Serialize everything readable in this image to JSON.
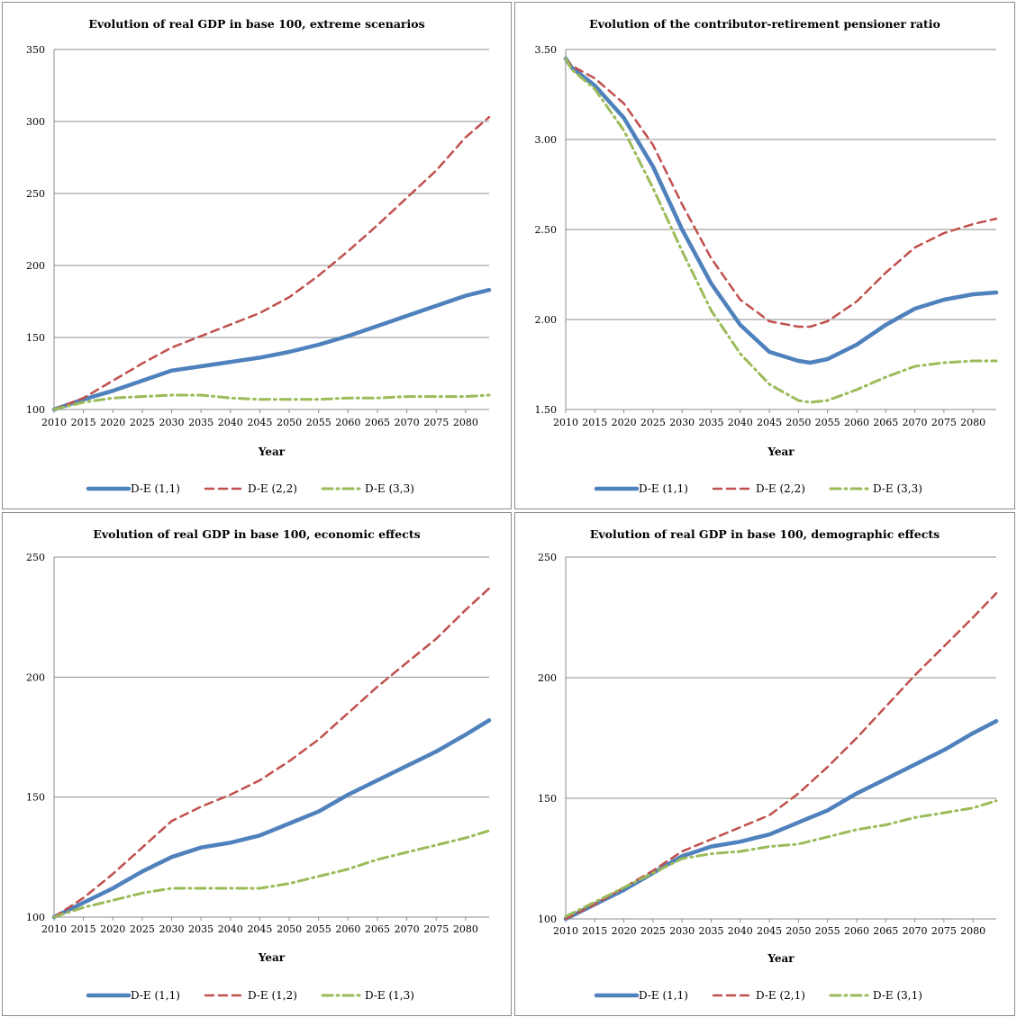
{
  "chart_data": [
    {
      "type": "line",
      "title": "Evolution of real GDP in base 100, extreme scenarios",
      "xlabel": "Year",
      "ylabel": "",
      "x": [
        2010,
        2015,
        2020,
        2025,
        2030,
        2035,
        2040,
        2045,
        2050,
        2055,
        2060,
        2065,
        2070,
        2075,
        2080,
        2084
      ],
      "x_ticks": [
        "2010",
        "2015",
        "2020",
        "2025",
        "2030",
        "2035",
        "2040",
        "2045",
        "2050",
        "2055",
        "2060",
        "2065",
        "2070",
        "2075",
        "2080"
      ],
      "y_ticks": [
        "100",
        "150",
        "200",
        "250",
        "300",
        "350"
      ],
      "ylim": [
        100,
        350
      ],
      "xlim": [
        2010,
        2084
      ],
      "grid": "horizontal",
      "legend": "bottom",
      "series": [
        {
          "name": "D-E (1,1)",
          "color": "#4f81bd",
          "style": "solid",
          "values": [
            100,
            107,
            113,
            120,
            127,
            130,
            133,
            136,
            140,
            145,
            151,
            158,
            165,
            172,
            179,
            183
          ]
        },
        {
          "name": "D-E (2,2)",
          "color": "#c0504d",
          "style": "dashed",
          "values": [
            100,
            108,
            120,
            132,
            143,
            151,
            159,
            167,
            178,
            193,
            210,
            228,
            247,
            266,
            289,
            303
          ]
        },
        {
          "name": "D-E (3,3)",
          "color": "#9bbb59",
          "style": "dashdot",
          "values": [
            100,
            105,
            108,
            109,
            110,
            110,
            108,
            107,
            107,
            107,
            108,
            108,
            109,
            109,
            109,
            110
          ]
        }
      ]
    },
    {
      "type": "line",
      "title": "Evolution of the contributor-retirement pensioner ratio",
      "xlabel": "Year",
      "ylabel": "",
      "x": [
        2010,
        2011,
        2015,
        2020,
        2025,
        2030,
        2035,
        2040,
        2045,
        2050,
        2052,
        2055,
        2060,
        2065,
        2070,
        2075,
        2080,
        2084
      ],
      "x_ticks": [
        "2010",
        "2015",
        "2020",
        "2025",
        "2030",
        "2035",
        "2040",
        "2045",
        "2050",
        "2055",
        "2060",
        "2065",
        "2070",
        "2075",
        "2080"
      ],
      "y_ticks": [
        "1.50",
        "2.00",
        "2.50",
        "3.00",
        "3.50"
      ],
      "ylim": [
        1.5,
        3.5
      ],
      "xlim": [
        2010,
        2084
      ],
      "grid": "horizontal",
      "legend": "bottom",
      "series": [
        {
          "name": "D-E (1,1)",
          "color": "#4f81bd",
          "style": "solid",
          "values": [
            3.45,
            3.4,
            3.3,
            3.12,
            2.85,
            2.5,
            2.2,
            1.97,
            1.82,
            1.77,
            1.76,
            1.78,
            1.86,
            1.97,
            2.06,
            2.11,
            2.14,
            2.15
          ]
        },
        {
          "name": "D-E (2,2)",
          "color": "#c0504d",
          "style": "dashed",
          "values": [
            3.45,
            3.41,
            3.34,
            3.2,
            2.97,
            2.64,
            2.34,
            2.11,
            1.99,
            1.96,
            1.96,
            1.99,
            2.1,
            2.26,
            2.4,
            2.48,
            2.53,
            2.56
          ]
        },
        {
          "name": "D-E (3,3)",
          "color": "#9bbb59",
          "style": "dashdot",
          "values": [
            3.45,
            3.39,
            3.28,
            3.05,
            2.73,
            2.38,
            2.05,
            1.81,
            1.64,
            1.55,
            1.54,
            1.55,
            1.61,
            1.68,
            1.74,
            1.76,
            1.77,
            1.77
          ]
        }
      ]
    },
    {
      "type": "line",
      "title": "Evolution of real GDP in base 100, economic effects",
      "xlabel": "Year",
      "ylabel": "",
      "x": [
        2010,
        2015,
        2020,
        2025,
        2030,
        2035,
        2040,
        2045,
        2050,
        2055,
        2060,
        2065,
        2070,
        2075,
        2080,
        2084
      ],
      "x_ticks": [
        "2010",
        "2015",
        "2020",
        "2025",
        "2030",
        "2035",
        "2040",
        "2045",
        "2050",
        "2055",
        "2060",
        "2065",
        "2070",
        "2075",
        "2080"
      ],
      "y_ticks": [
        "100",
        "150",
        "200",
        "250"
      ],
      "ylim": [
        100,
        250
      ],
      "xlim": [
        2010,
        2084
      ],
      "grid": "horizontal",
      "legend": "bottom",
      "series": [
        {
          "name": "D-E (1,1)",
          "color": "#4f81bd",
          "style": "solid",
          "values": [
            100,
            106,
            112,
            119,
            125,
            129,
            131,
            134,
            139,
            144,
            151,
            157,
            163,
            169,
            176,
            182
          ]
        },
        {
          "name": "D-E (1,2)",
          "color": "#c0504d",
          "style": "dashed",
          "values": [
            100,
            108,
            118,
            129,
            140,
            146,
            151,
            157,
            165,
            174,
            185,
            196,
            206,
            216,
            228,
            237
          ]
        },
        {
          "name": "D-E (1,3)",
          "color": "#9bbb59",
          "style": "dashdot",
          "values": [
            100,
            104,
            107,
            110,
            112,
            112,
            112,
            112,
            114,
            117,
            120,
            124,
            127,
            130,
            133,
            136
          ]
        }
      ]
    },
    {
      "type": "line",
      "title": "Evolution of real GDP in base 100, demographic effects",
      "xlabel": "Year",
      "ylabel": "",
      "x": [
        2010,
        2015,
        2020,
        2025,
        2030,
        2035,
        2040,
        2045,
        2050,
        2055,
        2060,
        2065,
        2070,
        2075,
        2080,
        2084
      ],
      "x_ticks": [
        "2010",
        "2015",
        "2020",
        "2025",
        "2030",
        "2035",
        "2040",
        "2045",
        "2050",
        "2055",
        "2060",
        "2065",
        "2070",
        "2075",
        "2080"
      ],
      "y_ticks": [
        "100",
        "150",
        "200",
        "250"
      ],
      "ylim": [
        100,
        250
      ],
      "xlim": [
        2010,
        2084
      ],
      "grid": "horizontal",
      "legend": "bottom",
      "series": [
        {
          "name": "D-E (1,1)",
          "color": "#4f81bd",
          "style": "solid",
          "values": [
            100,
            106,
            112,
            119,
            126,
            130,
            132,
            135,
            140,
            145,
            152,
            158,
            164,
            170,
            177,
            182
          ]
        },
        {
          "name": "D-E (2,1)",
          "color": "#c0504d",
          "style": "dashed",
          "values": [
            100,
            106,
            113,
            120,
            128,
            133,
            138,
            143,
            152,
            163,
            175,
            188,
            201,
            213,
            225,
            235
          ]
        },
        {
          "name": "D-E (3,1)",
          "color": "#9bbb59",
          "style": "dashdot",
          "values": [
            101,
            107,
            113,
            119,
            125,
            127,
            128,
            130,
            131,
            134,
            137,
            139,
            142,
            144,
            146,
            149
          ]
        }
      ]
    }
  ]
}
